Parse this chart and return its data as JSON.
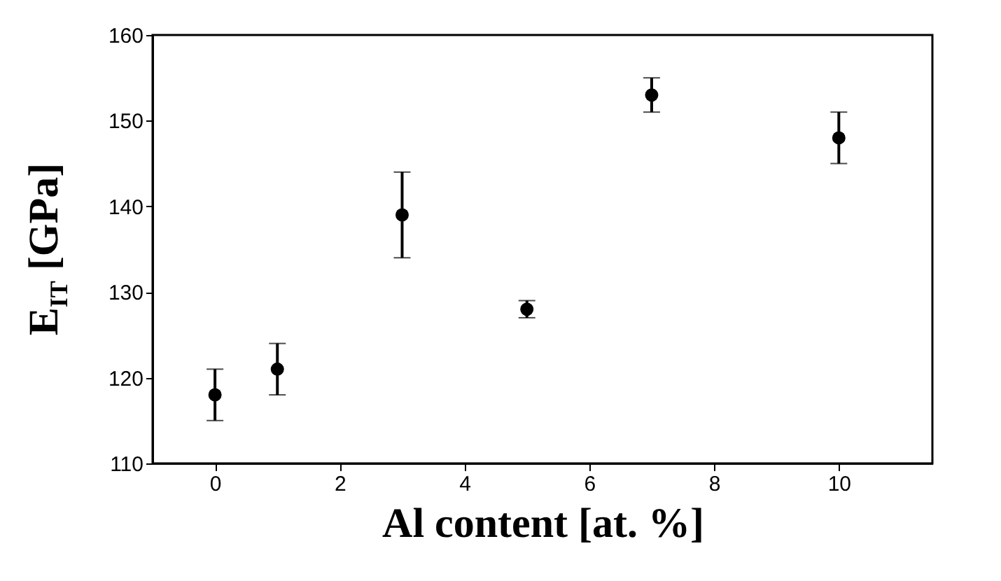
{
  "chart_data": {
    "type": "scatter",
    "xlabel": "Al content [at. %]",
    "ylabel": "E$_{IT}$ [GPa]",
    "x": [
      0,
      1,
      3,
      5,
      7,
      10
    ],
    "series": [
      {
        "color": "#000000",
        "values": [
          118,
          121,
          139,
          128,
          153,
          148
        ],
        "errors": [
          3,
          3,
          5,
          1,
          2,
          3
        ]
      }
    ],
    "xlim": [
      -1,
      11.5
    ],
    "xticks": [
      0,
      2,
      4,
      6,
      8,
      10
    ],
    "ylim": [
      110,
      160
    ],
    "yticks": [
      110,
      120,
      130,
      140,
      150,
      160
    ],
    "marker": "circle",
    "grid": false,
    "legend": false
  }
}
